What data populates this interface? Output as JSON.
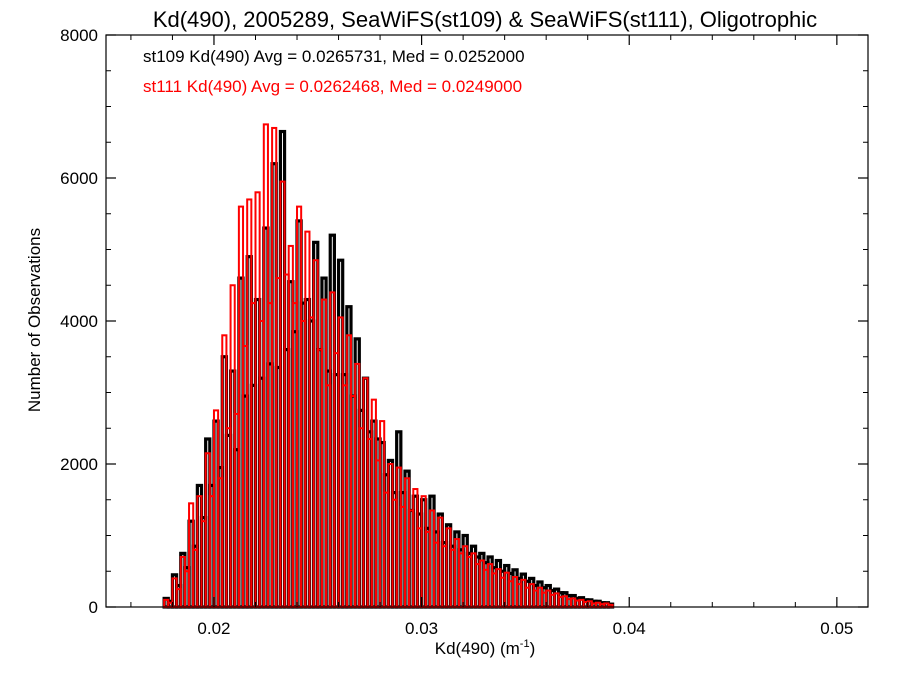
{
  "chart_data": {
    "type": "histogram",
    "title": "Kd(490), 2005289, SeaWiFS(st109) & SeaWiFS(st111), Oligotrophic",
    "xlabel": "Kd(490) (m",
    "xlabel_sup": "-1",
    "xlabel_close": ")",
    "ylabel": "Number of Observations",
    "xlim": [
      0.0148,
      0.0515
    ],
    "ylim": [
      0,
      8000
    ],
    "x_ticks": [
      0.02,
      0.03,
      0.04,
      0.05
    ],
    "x_tick_labels": [
      "0.02",
      "0.03",
      "0.04",
      "0.05"
    ],
    "y_ticks": [
      0,
      2000,
      4000,
      6000,
      8000
    ],
    "y_tick_labels": [
      "0",
      "2000",
      "4000",
      "6000",
      "8000"
    ],
    "bin_start": 0.0148,
    "bin_width": 0.0002,
    "series": [
      {
        "name": "st109",
        "color": "#000000",
        "annotation": "st109 Kd(490) Avg = 0.0265731, Med = 0.0252000",
        "values": [
          0,
          0,
          0,
          0,
          0,
          0,
          0,
          0,
          0,
          0,
          0,
          0,
          0,
          0,
          120,
          80,
          450,
          300,
          750,
          550,
          1200,
          850,
          1700,
          1250,
          2350,
          1700,
          2600,
          1950,
          3500,
          2400,
          3300,
          2200,
          4600,
          2950,
          4900,
          3100,
          4300,
          3200,
          5300,
          3400,
          6200,
          3350,
          6650,
          3600,
          4550,
          3850,
          5400,
          4250,
          4300,
          4000,
          5100,
          3600,
          4600,
          3300,
          5200,
          3250,
          4850,
          3250,
          4200,
          2950,
          3750,
          2750,
          3200,
          2450,
          2600,
          2350,
          2300,
          1850,
          2050,
          1600,
          2450,
          1600,
          1900,
          1350,
          1550,
          1300,
          1500,
          1100,
          1550,
          1050,
          1300,
          900,
          1150,
          850,
          1050,
          800,
          1000,
          750,
          850,
          700,
          750,
          620,
          700,
          550,
          650,
          500,
          580,
          470,
          520,
          400,
          460,
          360,
          400,
          300,
          350,
          270,
          300,
          230,
          250,
          200,
          200,
          160,
          160,
          120,
          130,
          100,
          100,
          80,
          80,
          60,
          60,
          40
        ]
      },
      {
        "name": "st111",
        "color": "#ff0000",
        "annotation": "st111 Kd(490) Avg = 0.0262468, Med = 0.0249000",
        "values": [
          0,
          0,
          0,
          0,
          0,
          0,
          0,
          0,
          0,
          0,
          0,
          0,
          0,
          0,
          100,
          60,
          400,
          250,
          700,
          500,
          1450,
          800,
          1550,
          1200,
          2150,
          1550,
          2750,
          1800,
          3800,
          2500,
          4500,
          2700,
          5600,
          3650,
          5700,
          4250,
          5800,
          4000,
          6750,
          4250,
          6700,
          4600,
          5950,
          4650,
          5050,
          4250,
          5600,
          4000,
          5250,
          4050,
          4850,
          3600,
          4300,
          3100,
          4400,
          3550,
          4050,
          3100,
          3800,
          2950,
          3400,
          2500,
          3200,
          2350,
          2900,
          2050,
          2600,
          1600,
          2000,
          1500,
          1950,
          1400,
          1800,
          1350,
          1650,
          1100,
          1550,
          1050,
          1350,
          900,
          1250,
          850,
          1100,
          800,
          950,
          750,
          850,
          700,
          750,
          600,
          650,
          520,
          600,
          470,
          530,
          410,
          480,
          360,
          420,
          320,
          380,
          270,
          320,
          230,
          270,
          200,
          230,
          170,
          190,
          140,
          150,
          110,
          120,
          90,
          100,
          70,
          80,
          50,
          60,
          40,
          50,
          30
        ]
      }
    ]
  }
}
